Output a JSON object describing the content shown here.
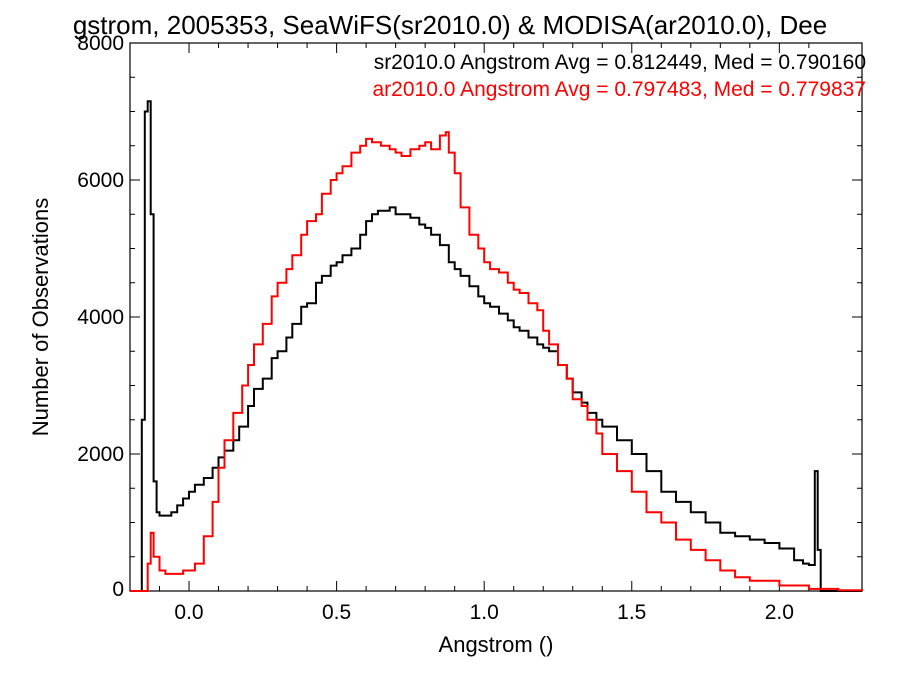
{
  "chart_data": {
    "type": "line",
    "title": "gstrom, 2005353, SeaWiFS(sr2010.0) & MODISA(ar2010.0), Dee",
    "xlabel": "Angstrom ()",
    "ylabel": "Number of Observations",
    "xlim": [
      -0.2,
      2.28
    ],
    "ylim": [
      0,
      8000
    ],
    "xticks": [
      0.0,
      0.5,
      1.0,
      1.5,
      2.0
    ],
    "xtick_labels": [
      "0.0",
      "0.5",
      "1.0",
      "1.5",
      "2.0"
    ],
    "yticks": [
      0,
      2000,
      4000,
      6000,
      8000
    ],
    "ytick_labels": [
      "0",
      "2000",
      "4000",
      "6000",
      "8000"
    ],
    "grid": false,
    "legend_position": "top-right",
    "series": [
      {
        "name": "sr2010.0 Angstrom Avg = 0.812449, Med = 0.790160",
        "color": "#000000",
        "x": [
          -0.2,
          -0.17,
          -0.16,
          -0.15,
          -0.14,
          -0.13,
          -0.12,
          -0.11,
          -0.1,
          -0.08,
          -0.06,
          -0.04,
          -0.02,
          0.0,
          0.02,
          0.05,
          0.08,
          0.1,
          0.12,
          0.15,
          0.17,
          0.2,
          0.22,
          0.25,
          0.28,
          0.3,
          0.33,
          0.35,
          0.38,
          0.4,
          0.43,
          0.45,
          0.48,
          0.5,
          0.52,
          0.55,
          0.58,
          0.6,
          0.62,
          0.64,
          0.66,
          0.68,
          0.7,
          0.72,
          0.75,
          0.78,
          0.8,
          0.82,
          0.85,
          0.88,
          0.9,
          0.92,
          0.95,
          0.98,
          1.0,
          1.02,
          1.05,
          1.08,
          1.1,
          1.12,
          1.15,
          1.18,
          1.2,
          1.22,
          1.25,
          1.28,
          1.3,
          1.33,
          1.35,
          1.38,
          1.4,
          1.45,
          1.5,
          1.55,
          1.6,
          1.65,
          1.7,
          1.75,
          1.8,
          1.85,
          1.9,
          1.95,
          2.0,
          2.05,
          2.08,
          2.1,
          2.12,
          2.13,
          2.14,
          2.15,
          2.2,
          2.28
        ],
        "y": [
          0,
          0,
          2500,
          7000,
          7150,
          5500,
          1600,
          1150,
          1100,
          1100,
          1150,
          1250,
          1350,
          1450,
          1550,
          1650,
          1800,
          1950,
          2050,
          2200,
          2400,
          2700,
          2950,
          3100,
          3400,
          3500,
          3700,
          3900,
          4150,
          4200,
          4500,
          4600,
          4750,
          4800,
          4900,
          5000,
          5200,
          5400,
          5500,
          5550,
          5550,
          5600,
          5500,
          5500,
          5450,
          5350,
          5300,
          5200,
          5050,
          4800,
          4700,
          4600,
          4450,
          4300,
          4200,
          4150,
          4050,
          3950,
          3850,
          3800,
          3700,
          3600,
          3550,
          3500,
          3300,
          3100,
          2900,
          2750,
          2600,
          2500,
          2400,
          2200,
          2000,
          1750,
          1450,
          1300,
          1150,
          1000,
          850,
          800,
          750,
          700,
          620,
          450,
          400,
          380,
          1750,
          600,
          0,
          0,
          0,
          0
        ]
      },
      {
        "name": "ar2010.0 Angstrom Avg = 0.797483, Med = 0.779837",
        "color": "#ff0000",
        "x": [
          -0.2,
          -0.15,
          -0.14,
          -0.13,
          -0.12,
          -0.1,
          -0.08,
          -0.05,
          -0.02,
          0.0,
          0.02,
          0.05,
          0.08,
          0.1,
          0.12,
          0.15,
          0.18,
          0.2,
          0.22,
          0.25,
          0.28,
          0.3,
          0.33,
          0.35,
          0.38,
          0.4,
          0.43,
          0.45,
          0.48,
          0.5,
          0.52,
          0.55,
          0.58,
          0.6,
          0.62,
          0.65,
          0.68,
          0.7,
          0.72,
          0.75,
          0.78,
          0.8,
          0.82,
          0.85,
          0.87,
          0.88,
          0.9,
          0.92,
          0.95,
          0.98,
          1.0,
          1.02,
          1.05,
          1.08,
          1.1,
          1.12,
          1.15,
          1.18,
          1.2,
          1.22,
          1.25,
          1.28,
          1.3,
          1.33,
          1.35,
          1.38,
          1.4,
          1.45,
          1.5,
          1.55,
          1.6,
          1.65,
          1.7,
          1.75,
          1.8,
          1.85,
          1.9,
          2.0,
          2.1,
          2.2,
          2.28
        ],
        "y": [
          0,
          0,
          400,
          850,
          500,
          300,
          250,
          250,
          300,
          300,
          400,
          800,
          1300,
          1800,
          2200,
          2600,
          3000,
          3300,
          3600,
          3900,
          4300,
          4500,
          4700,
          4900,
          5200,
          5400,
          5500,
          5800,
          6000,
          6100,
          6200,
          6400,
          6500,
          6600,
          6550,
          6500,
          6450,
          6400,
          6350,
          6450,
          6500,
          6550,
          6450,
          6650,
          6700,
          6400,
          6100,
          5600,
          5200,
          5000,
          4800,
          4700,
          4650,
          4500,
          4400,
          4350,
          4200,
          4100,
          3800,
          3600,
          3300,
          3100,
          2800,
          2700,
          2500,
          2300,
          2000,
          1750,
          1450,
          1150,
          1000,
          750,
          600,
          450,
          300,
          200,
          150,
          80,
          30,
          10,
          0
        ]
      }
    ]
  }
}
